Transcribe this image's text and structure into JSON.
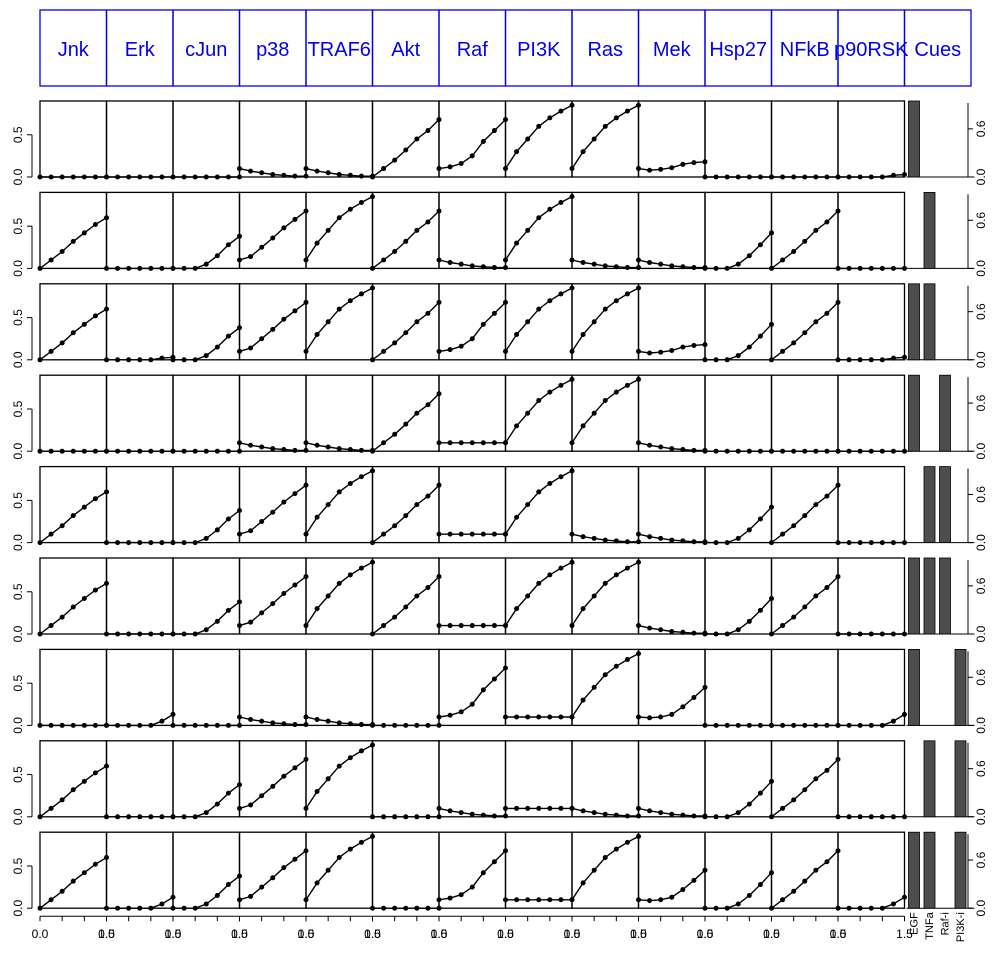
{
  "chart_data": {
    "type": "line",
    "layout": "small-multiples grid: rows = experiments, columns = readouts, plus a cue bar panel",
    "column_headers": [
      "Jnk",
      "Erk",
      "cJun",
      "p38",
      "TRAF6",
      "Akt",
      "Raf",
      "PI3K",
      "Ras",
      "Mek",
      "Hsp27",
      "NFkB",
      "p90RSK",
      "Cues"
    ],
    "header_border_color": "#0000ee",
    "header_text_color": "#0000ee",
    "line_color": "#000000",
    "bar_color": "#4d4d4d",
    "x": [
      0.0,
      0.25,
      0.5,
      0.75,
      1.0,
      1.25,
      1.5
    ],
    "xlim": [
      0.0,
      1.5
    ],
    "x_tick_labels": [
      "0.0",
      "1.5"
    ],
    "ylim": [
      0.0,
      0.9
    ],
    "y_tick_labels_left": [
      "0.0",
      "0.5"
    ],
    "y_tick_labels_right": [
      "0.0",
      "0.6"
    ],
    "cue_labels": [
      "EGF",
      "TNFa",
      "Raf-i",
      "PI3K-i"
    ],
    "profiles": {
      "F": [
        0,
        0,
        0,
        0,
        0,
        0,
        0
      ],
      "D": [
        0.1,
        0.07,
        0.05,
        0.03,
        0.02,
        0.01,
        0.01
      ],
      "LF": [
        0,
        0,
        0,
        0,
        0,
        0.02,
        0.03
      ],
      "LE": [
        0,
        0,
        0,
        0,
        0,
        0.05,
        0.13
      ],
      "RF": [
        0,
        0,
        0,
        0,
        0,
        0,
        0
      ],
      "RJ": [
        0,
        0.1,
        0.2,
        0.32,
        0.42,
        0.52,
        0.6
      ],
      "RC": [
        0,
        0,
        0,
        0.05,
        0.15,
        0.28,
        0.38
      ],
      "RP": [
        0.1,
        0.14,
        0.25,
        0.36,
        0.48,
        0.58,
        0.68
      ],
      "RT": [
        0.1,
        0.3,
        0.45,
        0.6,
        0.7,
        0.78,
        0.85
      ],
      "RA": [
        0,
        0.1,
        0.2,
        0.32,
        0.45,
        0.55,
        0.68
      ],
      "RK": [
        0.1,
        0.12,
        0.16,
        0.25,
        0.42,
        0.55,
        0.68
      ],
      "SA": [
        0.1,
        0.3,
        0.45,
        0.6,
        0.7,
        0.78,
        0.85
      ],
      "ME": [
        0.1,
        0.08,
        0.09,
        0.11,
        0.15,
        0.17,
        0.18
      ],
      "MR": [
        0.1,
        0.09,
        0.1,
        0.13,
        0.22,
        0.33,
        0.45
      ],
      "HS": [
        0,
        0,
        0,
        0.05,
        0.15,
        0.28,
        0.42
      ],
      "FL": [
        0.1,
        0.1,
        0.1,
        0.1,
        0.1,
        0.1,
        0.1
      ],
      "PL": [
        0.1,
        0.1,
        0.1,
        0.1,
        0.1,
        0.1,
        0.1
      ]
    },
    "panels": [
      [
        "F",
        "F",
        "F",
        "D",
        "D",
        "RA",
        "RK",
        "SA",
        "SA",
        "ME",
        "F",
        "F",
        "LF"
      ],
      [
        "RJ",
        "F",
        "RC",
        "RP",
        "RT",
        "RA",
        "D",
        "SA",
        "D",
        "D",
        "HS",
        "RA",
        "F"
      ],
      [
        "RJ",
        "LF",
        "RC",
        "RP",
        "RT",
        "RA",
        "RK",
        "SA",
        "SA",
        "ME",
        "HS",
        "RA",
        "LF"
      ],
      [
        "F",
        "F",
        "F",
        "D",
        "D",
        "RA",
        "FL",
        "SA",
        "SA",
        "D",
        "F",
        "F",
        "F"
      ],
      [
        "RJ",
        "F",
        "RC",
        "RP",
        "RT",
        "RA",
        "FL",
        "SA",
        "D",
        "D",
        "HS",
        "RA",
        "F"
      ],
      [
        "RJ",
        "F",
        "RC",
        "RP",
        "RT",
        "RA",
        "FL",
        "SA",
        "SA",
        "D",
        "HS",
        "RA",
        "F"
      ],
      [
        "F",
        "LE",
        "F",
        "D",
        "D",
        "F",
        "RK",
        "PL",
        "SA",
        "MR",
        "F",
        "F",
        "LE"
      ],
      [
        "RJ",
        "F",
        "RC",
        "RP",
        "RT",
        "F",
        "D",
        "PL",
        "D",
        "D",
        "HS",
        "RA",
        "F"
      ],
      [
        "RJ",
        "LE",
        "RC",
        "RP",
        "RT",
        "F",
        "RK",
        "PL",
        "SA",
        "MR",
        "HS",
        "RA",
        "LE"
      ]
    ],
    "cues": [
      [
        1,
        0,
        0,
        0
      ],
      [
        0,
        1,
        0,
        0
      ],
      [
        1,
        1,
        0,
        0
      ],
      [
        1,
        0,
        1,
        0
      ],
      [
        0,
        1,
        1,
        0
      ],
      [
        1,
        1,
        1,
        0
      ],
      [
        1,
        0,
        0,
        1
      ],
      [
        0,
        1,
        0,
        1
      ],
      [
        1,
        1,
        0,
        1
      ]
    ]
  }
}
